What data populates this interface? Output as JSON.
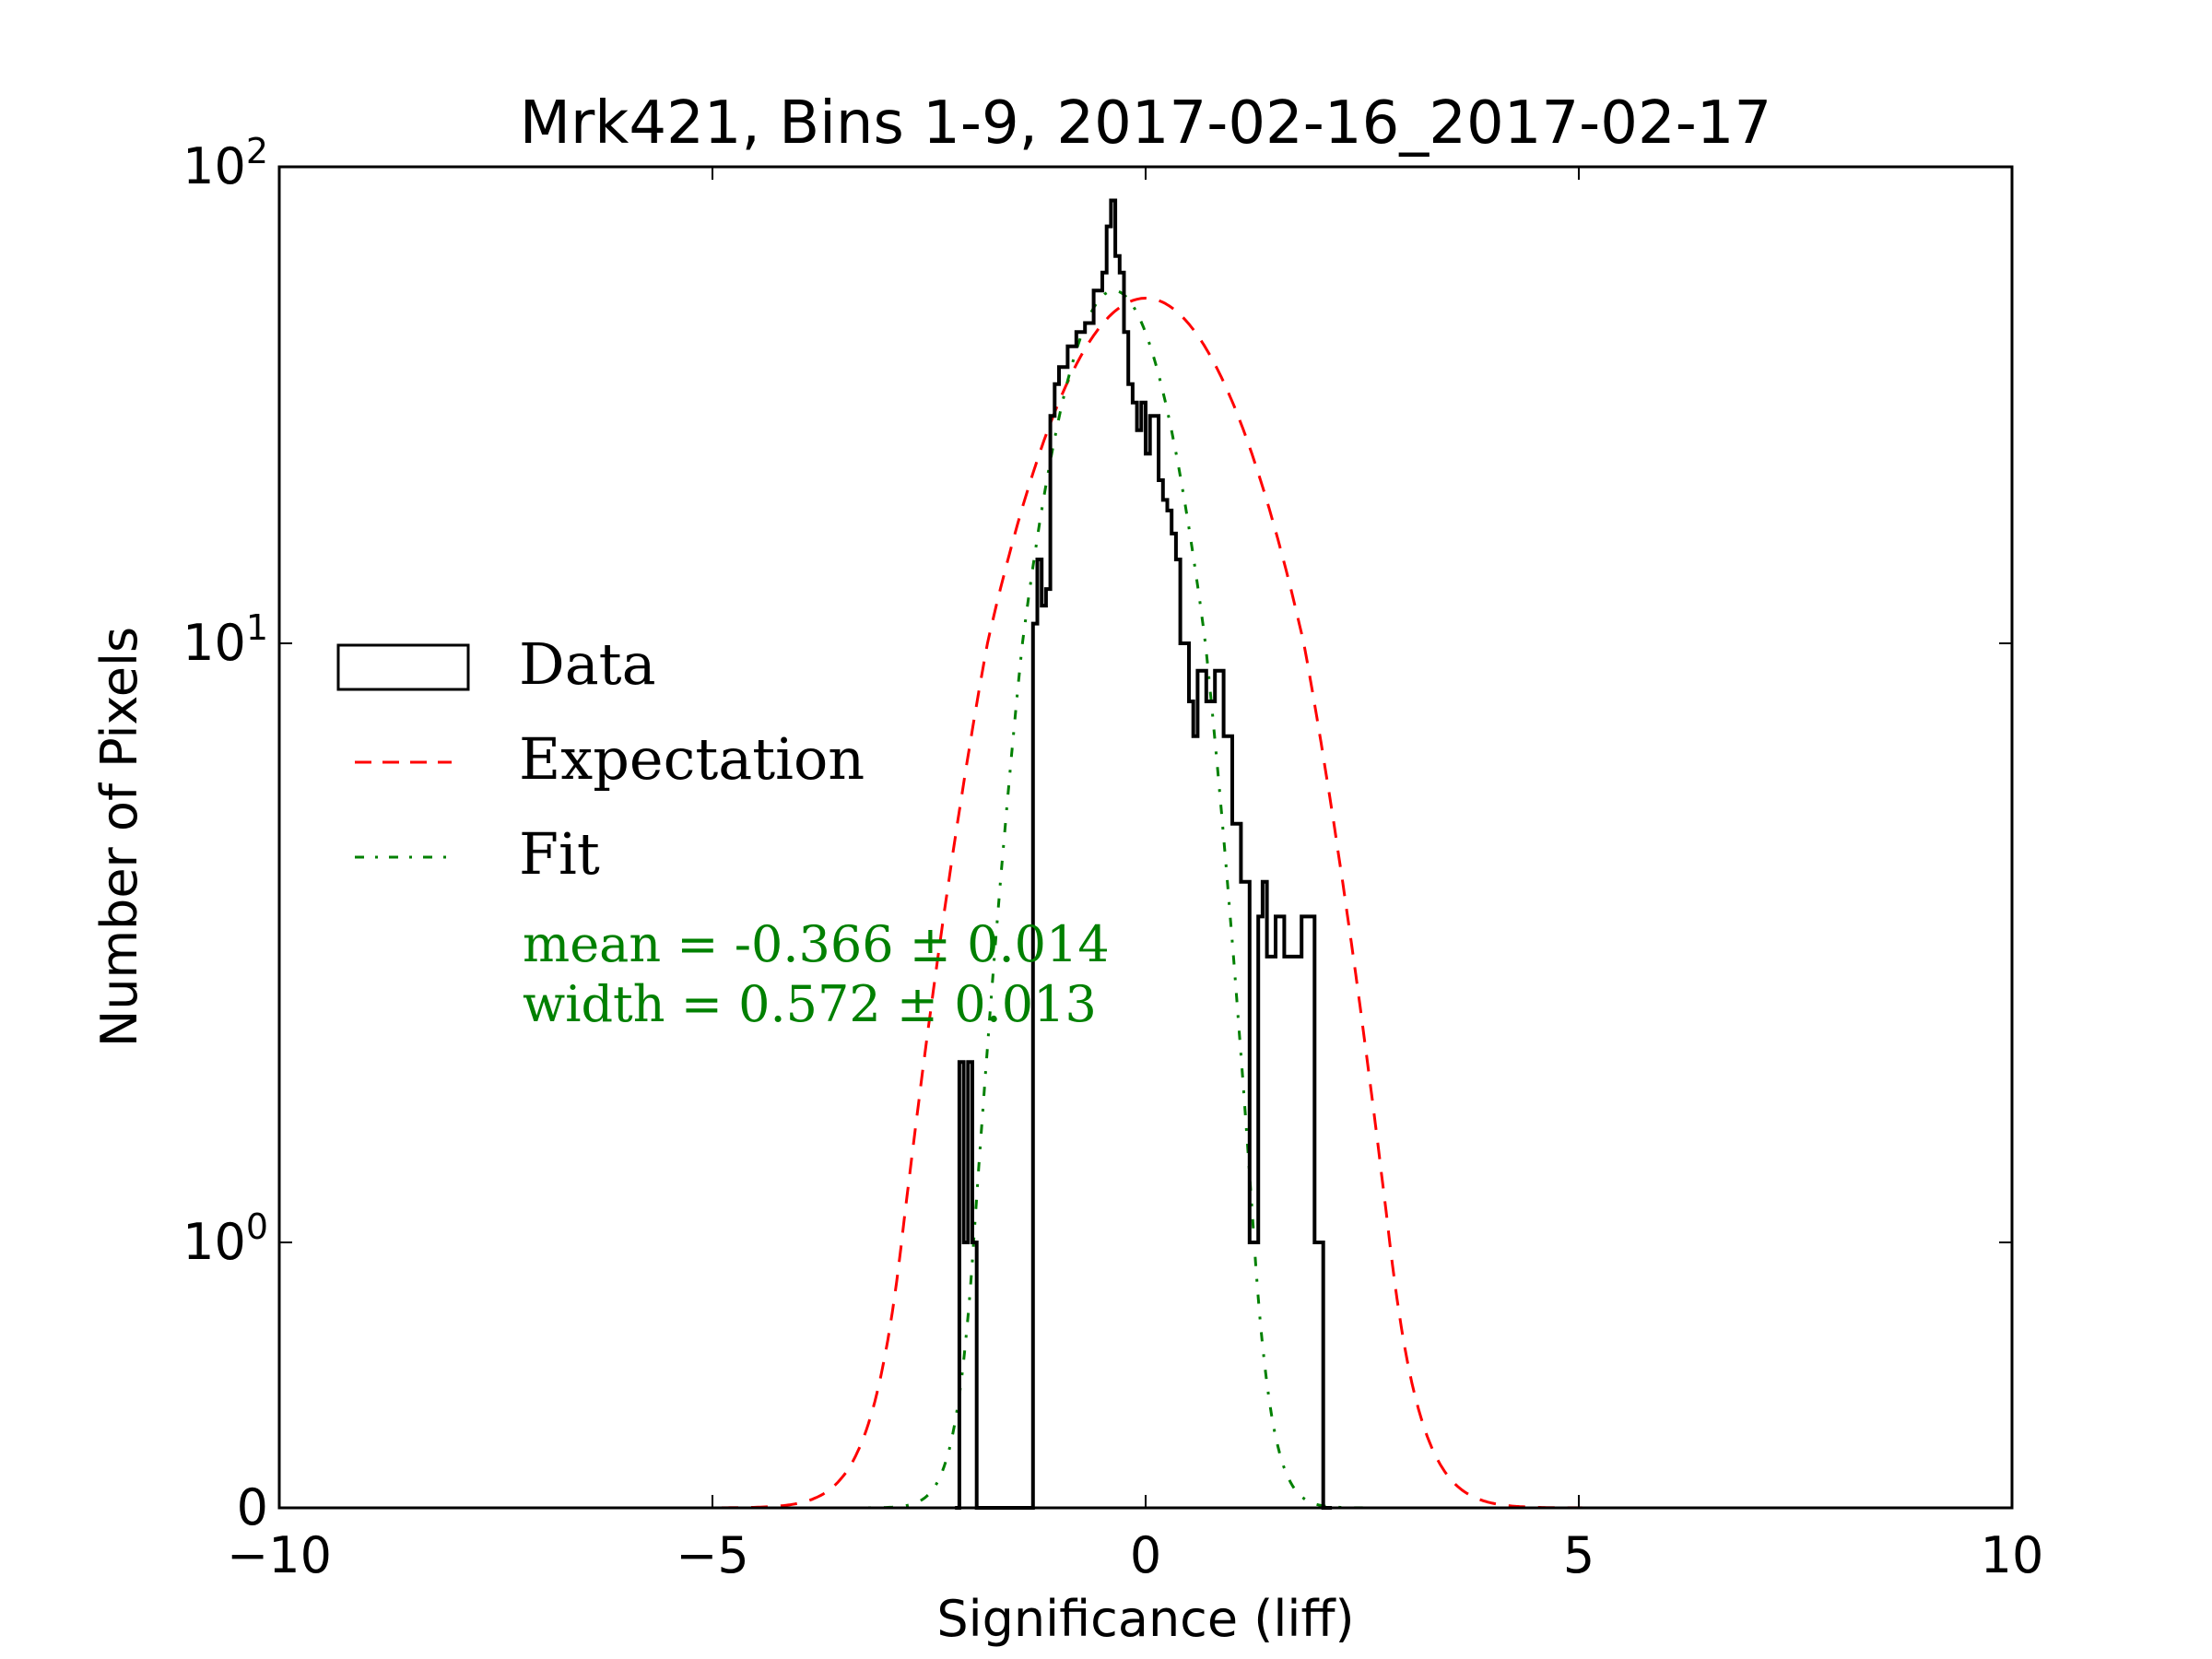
{
  "chart_data": {
    "type": "line",
    "title": "Mrk421, Bins 1-9, 2017-02-16_2017-02-17",
    "xlabel": "Significance (liff)",
    "ylabel": "Number of Pixels",
    "xlim": [
      -10,
      10
    ],
    "ylim": [
      0,
      100
    ],
    "yscale": "symlog",
    "x_ticks": [
      "−10",
      "−5",
      "0",
      "5",
      "10"
    ],
    "x_tick_values": [
      -10,
      -5,
      0,
      5,
      10
    ],
    "y_ticks": [
      {
        "base": "0",
        "exp": "",
        "value": 0
      },
      {
        "base": "10",
        "exp": "0",
        "value": 1
      },
      {
        "base": "10",
        "exp": "1",
        "value": 10
      },
      {
        "base": "10",
        "exp": "2",
        "value": 100
      }
    ],
    "legend": {
      "placement": "center-left",
      "entries": [
        {
          "label": "Data",
          "style": "box",
          "color": "#000000"
        },
        {
          "label": "Expectation",
          "style": "dashed",
          "color": "#ff0000"
        },
        {
          "label": "Fit",
          "style": "dashdot",
          "color": "#008000"
        }
      ]
    },
    "annotation": {
      "mean_text": "mean = -0.366 ± 0.014",
      "width_text": "width = 0.572 ± 0.013",
      "color": "#008000"
    },
    "series": [
      {
        "name": "Data",
        "type": "step",
        "color": "#000000",
        "x": [
          -2.2,
          -2.15,
          -2.1,
          -2.05,
          -2.0,
          -1.95,
          -1.3,
          -1.25,
          -1.2,
          -1.15,
          -1.1,
          -1.05,
          -1.0,
          -0.9,
          -0.8,
          -0.7,
          -0.6,
          -0.5,
          -0.45,
          -0.4,
          -0.35,
          -0.3,
          -0.25,
          -0.2,
          -0.15,
          -0.1,
          -0.05,
          0.0,
          0.05,
          0.1,
          0.15,
          0.2,
          0.25,
          0.3,
          0.35,
          0.4,
          0.5,
          0.55,
          0.6,
          0.7,
          0.8,
          0.9,
          1.0,
          1.1,
          1.2,
          1.3,
          1.35,
          1.4,
          1.5,
          1.6,
          1.7,
          1.8,
          1.95,
          2.05,
          2.1
        ],
        "y": [
          0,
          2,
          1,
          2,
          1,
          0,
          11,
          15,
          12,
          13,
          30,
          35,
          38,
          42,
          45,
          47,
          55,
          60,
          75,
          85,
          65,
          60,
          45,
          35,
          32,
          28,
          32,
          25,
          30,
          30,
          22,
          20,
          19,
          17,
          15,
          10,
          8,
          7,
          9,
          8,
          9,
          7,
          5,
          4,
          1,
          3.5,
          4,
          3,
          3.5,
          3,
          3,
          3.5,
          1,
          0,
          0
        ]
      },
      {
        "name": "Expectation",
        "type": "gaussian",
        "color": "#ff0000",
        "mean": 0,
        "width": 1,
        "amplitude": 53,
        "xrange": [
          -10,
          10
        ],
        "min_visible_y": 0
      },
      {
        "name": "Fit",
        "type": "gaussian",
        "color": "#008000",
        "mean": -0.366,
        "width": 0.572,
        "amplitude": 55,
        "xrange": [
          -10,
          10
        ]
      }
    ]
  }
}
